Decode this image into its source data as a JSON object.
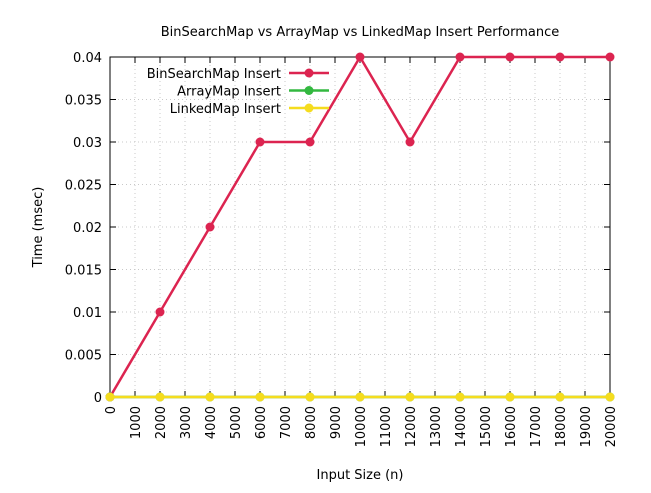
{
  "chart_data": {
    "type": "line",
    "title": "BinSearchMap vs ArrayMap vs LinkedMap Insert Performance",
    "xlabel": "Input Size (n)",
    "ylabel": "Time (msec)",
    "xlim": [
      0,
      20000
    ],
    "ylim": [
      0,
      0.04
    ],
    "xticks": [
      0,
      1000,
      2000,
      3000,
      4000,
      5000,
      6000,
      7000,
      8000,
      9000,
      10000,
      11000,
      12000,
      13000,
      14000,
      15000,
      16000,
      17000,
      18000,
      19000,
      20000
    ],
    "yticks": [
      0,
      0.005,
      0.01,
      0.015,
      0.02,
      0.025,
      0.03,
      0.035,
      0.04
    ],
    "ytick_labels": [
      "0",
      "0.005",
      "0.01",
      "0.015",
      "0.02",
      "0.025",
      "0.03",
      "0.035",
      "0.04"
    ],
    "grid": true,
    "legend_position": "top-left",
    "x": [
      0,
      2000,
      4000,
      6000,
      8000,
      10000,
      12000,
      14000,
      16000,
      18000,
      20000
    ],
    "series": [
      {
        "name": "BinSearchMap Insert",
        "color": "#dc2450",
        "values": [
          0,
          0.01,
          0.02,
          0.03,
          0.03,
          0.04,
          0.03,
          0.04,
          0.04,
          0.04,
          0.04
        ]
      },
      {
        "name": "ArrayMap Insert",
        "color": "#33b840",
        "values": [
          0,
          0,
          0,
          0,
          0,
          0,
          0,
          0,
          0,
          0,
          0
        ]
      },
      {
        "name": "LinkedMap Insert",
        "color": "#f5dc1e",
        "values": [
          0,
          0,
          0,
          0,
          0,
          0,
          0,
          0,
          0,
          0,
          0
        ]
      }
    ]
  }
}
